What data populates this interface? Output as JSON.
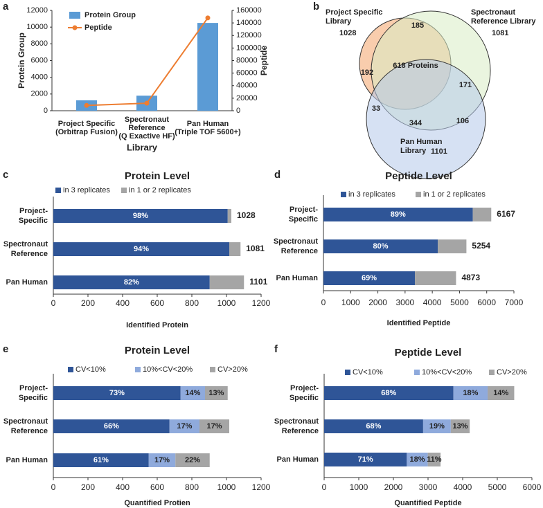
{
  "chart_data": [
    {
      "type": "bar_line",
      "panel": "a",
      "categories": [
        [
          "Project Specific",
          "(Orbitrap Fusion)"
        ],
        [
          "Spectronaut",
          "Reference",
          "(Q Exactive HF)"
        ],
        [
          "Pan Human",
          "(Triple TOF 5600+)"
        ]
      ],
      "series": [
        {
          "name": "Protein Group",
          "mark": "bar",
          "color": "#5b9bd5",
          "values": [
            1250,
            1800,
            10500
          ]
        },
        {
          "name": "Peptide",
          "mark": "line",
          "axis": "y2",
          "color": "#ed7d31",
          "values": [
            8500,
            12000,
            148000
          ]
        }
      ],
      "xlabel": "Library",
      "ylabel": "Protein Group",
      "y2label": "Peptide",
      "ylim": [
        0,
        12000
      ],
      "yticks": [
        0,
        2000,
        4000,
        6000,
        8000,
        10000,
        12000
      ],
      "y2lim": [
        0,
        160000
      ],
      "y2ticks": [
        0,
        20000,
        40000,
        60000,
        80000,
        100000,
        120000,
        140000,
        160000
      ]
    },
    {
      "type": "venn",
      "panel": "b",
      "sets": [
        {
          "name": [
            "Project Specific",
            "Library"
          ],
          "size": 1028,
          "color": "#f4a46a"
        },
        {
          "name": [
            "Spectronaut",
            "Reference Library"
          ],
          "size": 1081,
          "color": "#d9ecc4"
        },
        {
          "name": [
            "Pan Human",
            "Library"
          ],
          "size": 1101,
          "color": "#b4c9ea"
        }
      ],
      "regions": {
        "values": [
          192,
          185,
          171,
          618,
          33,
          106,
          344
        ],
        "value_labels": [
          "192",
          "185",
          "171",
          "618 Proteins",
          "33",
          "106",
          "344"
        ]
      }
    },
    {
      "type": "stacked_hbar",
      "panel": "c",
      "title": "Protein Level",
      "categories": [
        [
          "Project-",
          "Specific"
        ],
        [
          "Spectronaut",
          "Reference"
        ],
        [
          "Pan Human"
        ]
      ],
      "series": [
        {
          "name": "in 3 replicates",
          "color": "#2f5597",
          "values": [
            1007,
            1016,
            903
          ],
          "shares": [
            "98%",
            "94%",
            "82%"
          ]
        },
        {
          "name": "in 1 or 2 replicates",
          "color": "#a5a5a5",
          "values": [
            21,
            65,
            198
          ]
        }
      ],
      "totals": [
        1028,
        1081,
        1101
      ],
      "xlabel": "Identified Protein",
      "xlim": [
        0,
        1200
      ],
      "xticks": [
        0,
        200,
        400,
        600,
        800,
        1000,
        1200
      ]
    },
    {
      "type": "stacked_hbar",
      "panel": "d",
      "title": "Peptide Level",
      "categories": [
        [
          "Project-",
          "Specific"
        ],
        [
          "Spectronaut",
          "Reference"
        ],
        [
          "Pan Human"
        ]
      ],
      "series": [
        {
          "name": "in 3 replicates",
          "color": "#2f5597",
          "values": [
            5489,
            4203,
            3362
          ],
          "shares": [
            "89%",
            "80%",
            "69%"
          ]
        },
        {
          "name": "in 1 or 2 replicates",
          "color": "#a5a5a5",
          "values": [
            678,
            1051,
            1511
          ]
        }
      ],
      "totals": [
        6167,
        5254,
        4873
      ],
      "xlabel": "Identified Peptide",
      "xlim": [
        0,
        7000
      ],
      "xticks": [
        0,
        1000,
        2000,
        3000,
        4000,
        5000,
        6000,
        7000
      ]
    },
    {
      "type": "stacked_hbar",
      "panel": "e",
      "title": "Protein Level",
      "categories": [
        [
          "Project-",
          "Specific"
        ],
        [
          "Spectronaut",
          "Reference"
        ],
        [
          "Pan Human"
        ]
      ],
      "series": [
        {
          "name": "CV<10%",
          "color": "#2f5597",
          "values": [
            735,
            671,
            551
          ],
          "shares": [
            "73%",
            "66%",
            "61%"
          ]
        },
        {
          "name": "10%<CV<20%",
          "color": "#8faadc",
          "values": [
            141,
            173,
            154
          ],
          "shares": [
            "14%",
            "17%",
            "17%"
          ]
        },
        {
          "name": "CV>20%",
          "color": "#a5a5a5",
          "values": [
            131,
            172,
            198
          ],
          "shares": [
            "13%",
            "17%",
            "22%"
          ]
        }
      ],
      "xlabel": "Quantified Protien",
      "xlim": [
        0,
        1200
      ],
      "xticks": [
        0,
        200,
        400,
        600,
        800,
        1000,
        1200
      ]
    },
    {
      "type": "stacked_hbar",
      "panel": "f",
      "title": "Peptide Level",
      "categories": [
        [
          "Project-",
          "Specific"
        ],
        [
          "Spectronaut",
          "Reference"
        ],
        [
          "Pan Human"
        ]
      ],
      "series": [
        {
          "name": "CV<10%",
          "color": "#2f5597",
          "values": [
            3733,
            2858,
            2387
          ],
          "shares": [
            "68%",
            "68%",
            "71%"
          ]
        },
        {
          "name": "10%<CV<20%",
          "color": "#8faadc",
          "values": [
            988,
            799,
            605
          ],
          "shares": [
            "18%",
            "19%",
            "18%"
          ]
        },
        {
          "name": "CV>20%",
          "color": "#a5a5a5",
          "values": [
            768,
            546,
            370
          ],
          "shares": [
            "14%",
            "13%",
            "11%"
          ]
        }
      ],
      "xlabel": "Quantified Peptide",
      "xlim": [
        0,
        6000
      ],
      "xticks": [
        0,
        1000,
        2000,
        3000,
        4000,
        5000,
        6000
      ]
    }
  ]
}
